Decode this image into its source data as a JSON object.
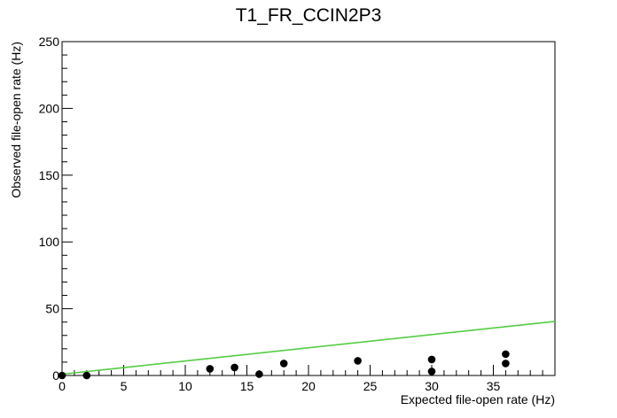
{
  "chart_data": {
    "type": "scatter",
    "title": "T1_FR_CCIN2P3",
    "xlabel": "Expected file-open rate (Hz)",
    "ylabel": "Observed file-open rate (Hz)",
    "xlim": [
      0,
      40
    ],
    "ylim": [
      0,
      250
    ],
    "xticks": [
      0,
      5,
      10,
      15,
      20,
      25,
      30,
      35
    ],
    "yticks": [
      0,
      50,
      100,
      150,
      200,
      250
    ],
    "grid": false,
    "points": [
      {
        "x": 0,
        "y": 0
      },
      {
        "x": 2,
        "y": 0
      },
      {
        "x": 12,
        "y": 5
      },
      {
        "x": 14,
        "y": 6
      },
      {
        "x": 16,
        "y": 1
      },
      {
        "x": 18,
        "y": 9
      },
      {
        "x": 24,
        "y": 11
      },
      {
        "x": 30,
        "y": 3
      },
      {
        "x": 30,
        "y": 12
      },
      {
        "x": 36,
        "y": 9
      },
      {
        "x": 36,
        "y": 16
      }
    ],
    "fit_line": {
      "x": [
        0,
        40
      ],
      "y": [
        1,
        40.5
      ],
      "color": "#55cc44"
    },
    "marker_color": "#000000"
  }
}
